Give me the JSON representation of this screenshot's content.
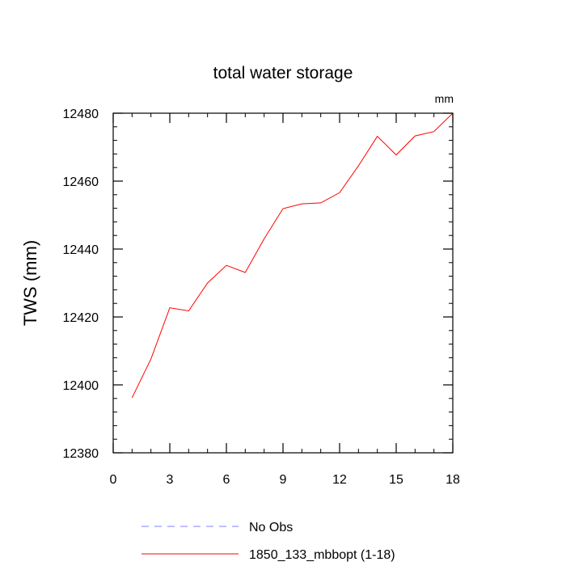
{
  "chart_data": {
    "type": "line",
    "title": "total water storage",
    "units_label": "mm",
    "xlabel": "",
    "ylabel": "TWS  (mm)",
    "xlim": [
      0,
      18
    ],
    "ylim": [
      12380,
      12480
    ],
    "x_ticks": [
      0,
      3,
      6,
      9,
      12,
      15,
      18
    ],
    "x_tick_labels": [
      "0",
      "3",
      "6",
      "9",
      "12",
      "15",
      "18"
    ],
    "y_ticks": [
      12380,
      12400,
      12420,
      12440,
      12460,
      12480
    ],
    "y_tick_labels": [
      "12380",
      "12400",
      "12420",
      "12440",
      "12460",
      "12480"
    ],
    "grid": false,
    "legend_position": "bottom",
    "series": [
      {
        "name": "No Obs",
        "color": "#8080ff",
        "style": "dashed",
        "x": [],
        "values": []
      },
      {
        "name": "1850_133_mbbopt (1-18)",
        "color": "#ff0000",
        "style": "solid",
        "x": [
          1,
          2,
          3,
          4,
          5,
          6,
          7,
          8,
          9,
          10,
          11,
          12,
          13,
          14,
          15,
          16,
          17,
          18
        ],
        "values": [
          12396.2,
          12407.6,
          12422.7,
          12421.8,
          12430.0,
          12435.2,
          12433.1,
          12443.0,
          12451.9,
          12453.3,
          12453.6,
          12456.6,
          12464.5,
          12473.2,
          12467.7,
          12473.3,
          12474.6,
          12480.0
        ]
      }
    ]
  }
}
